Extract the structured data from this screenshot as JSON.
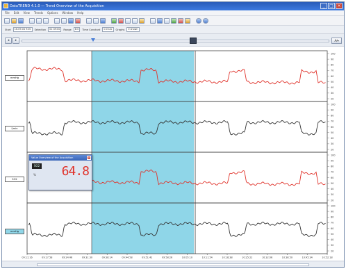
{
  "window": {
    "title": "DataTREND 4.1.0 — Trend Overview of the Acquisition",
    "colors": {
      "titlebar": "#2f6bd0",
      "selection": "#8fd6e8",
      "trace_red": "#e0332b",
      "trace_black": "#333333"
    }
  },
  "menubar": {
    "items": [
      "File",
      "Edit",
      "View",
      "Trends",
      "Options",
      "Window",
      "Help"
    ]
  },
  "toolbar": {
    "icons": [
      "new-icon",
      "open-icon",
      "save-icon",
      "print-icon",
      "grid-icon",
      "list-icon",
      "copy-icon",
      "cursor-icon",
      "zoom-icon",
      "marker-icon",
      "table-icon",
      "export-icon",
      "chart-icon",
      "refresh-icon",
      "settings-icon",
      "help-icon"
    ]
  },
  "fields": {
    "start_label": "Start",
    "start_value": "16.09.04 9:00",
    "selection_label": "Selection",
    "selection_value": "01:39:00",
    "range_label": "Range",
    "range_value": "8:0",
    "time_constant_label": "Time Constant",
    "time_constant_value": "0.0 sec",
    "graphs_label": "Graphs",
    "graphs_value": "0 shown"
  },
  "navigation": {
    "zoom_label": "A/▾"
  },
  "channels": [
    {
      "label": "mmHg",
      "color": "#e0332b"
    },
    {
      "label": "l/min",
      "color": "#333333"
    },
    {
      "label": "SO2",
      "color": "#e0332b"
    },
    {
      "label": "mmHg",
      "color": "#333333"
    }
  ],
  "time_axis": {
    "labels": [
      "09:11:16",
      "09:17:58",
      "09:24:46",
      "09:31:30",
      "09:38:14",
      "09:44:58",
      "09:51:42",
      "09:58:26",
      "10:05:10",
      "10:11:54",
      "10:18:38",
      "10:25:22",
      "10:32:06",
      "10:38:50",
      "10:45:34",
      "10:52:18"
    ]
  },
  "popup": {
    "title": "Value Overview of the Acquisition",
    "tag": "SO2",
    "unit": "%",
    "value": "64.8"
  }
}
